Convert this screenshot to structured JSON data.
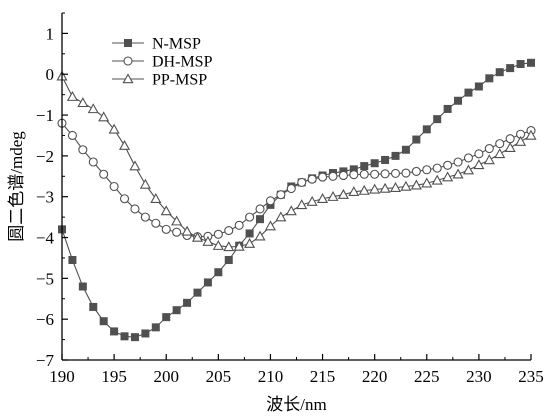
{
  "chart_data": {
    "type": "line",
    "xlabel": "波长/nm",
    "ylabel": "圆二色谱/mdeg",
    "xlim": [
      190,
      235
    ],
    "ylim": [
      -7,
      1.5
    ],
    "x_ticks": [
      "190",
      "195",
      "200",
      "205",
      "210",
      "215",
      "220",
      "225",
      "230",
      "235"
    ],
    "y_ticks": [
      "1",
      "0",
      "−1",
      "−2",
      "−3",
      "−4",
      "−5",
      "−6",
      "−7"
    ],
    "grid": false,
    "legend_position": "top-left",
    "x": [
      190,
      191,
      192,
      193,
      194,
      195,
      196,
      197,
      198,
      199,
      200,
      201,
      202,
      203,
      204,
      205,
      206,
      207,
      208,
      209,
      210,
      211,
      212,
      213,
      214,
      215,
      216,
      217,
      218,
      219,
      220,
      221,
      222,
      223,
      224,
      225,
      226,
      227,
      228,
      229,
      230,
      231,
      232,
      233,
      234,
      235
    ],
    "series": [
      {
        "name": "N-MSP",
        "marker": "filled-square",
        "values": [
          -3.8,
          -4.55,
          -5.2,
          -5.7,
          -6.05,
          -6.3,
          -6.42,
          -6.44,
          -6.35,
          -6.2,
          -5.95,
          -5.78,
          -5.6,
          -5.35,
          -5.1,
          -4.85,
          -4.55,
          -4.2,
          -3.9,
          -3.55,
          -3.2,
          -2.95,
          -2.75,
          -2.65,
          -2.55,
          -2.48,
          -2.42,
          -2.38,
          -2.33,
          -2.25,
          -2.18,
          -2.1,
          -2.0,
          -1.85,
          -1.6,
          -1.35,
          -1.1,
          -0.85,
          -0.65,
          -0.45,
          -0.3,
          -0.1,
          0.05,
          0.15,
          0.25,
          0.28
        ]
      },
      {
        "name": "DH-MSP",
        "marker": "open-circle",
        "values": [
          -1.2,
          -1.5,
          -1.85,
          -2.15,
          -2.45,
          -2.75,
          -3.05,
          -3.3,
          -3.5,
          -3.65,
          -3.8,
          -3.87,
          -3.95,
          -3.98,
          -3.97,
          -3.92,
          -3.83,
          -3.7,
          -3.5,
          -3.3,
          -3.1,
          -2.95,
          -2.8,
          -2.65,
          -2.57,
          -2.52,
          -2.5,
          -2.48,
          -2.46,
          -2.45,
          -2.45,
          -2.44,
          -2.43,
          -2.42,
          -2.38,
          -2.34,
          -2.3,
          -2.23,
          -2.15,
          -2.05,
          -1.95,
          -1.82,
          -1.7,
          -1.58,
          -1.47,
          -1.38
        ]
      },
      {
        "name": "PP-MSP",
        "marker": "open-triangle",
        "values": [
          -0.05,
          -0.55,
          -0.7,
          -0.85,
          -1.05,
          -1.35,
          -1.75,
          -2.25,
          -2.7,
          -3.05,
          -3.35,
          -3.6,
          -3.85,
          -4.0,
          -4.1,
          -4.2,
          -4.23,
          -4.22,
          -4.15,
          -3.97,
          -3.72,
          -3.5,
          -3.35,
          -3.2,
          -3.12,
          -3.05,
          -3.0,
          -2.95,
          -2.88,
          -2.85,
          -2.82,
          -2.8,
          -2.78,
          -2.75,
          -2.72,
          -2.67,
          -2.6,
          -2.52,
          -2.45,
          -2.35,
          -2.22,
          -2.1,
          -1.95,
          -1.8,
          -1.65,
          -1.5
        ]
      }
    ]
  }
}
